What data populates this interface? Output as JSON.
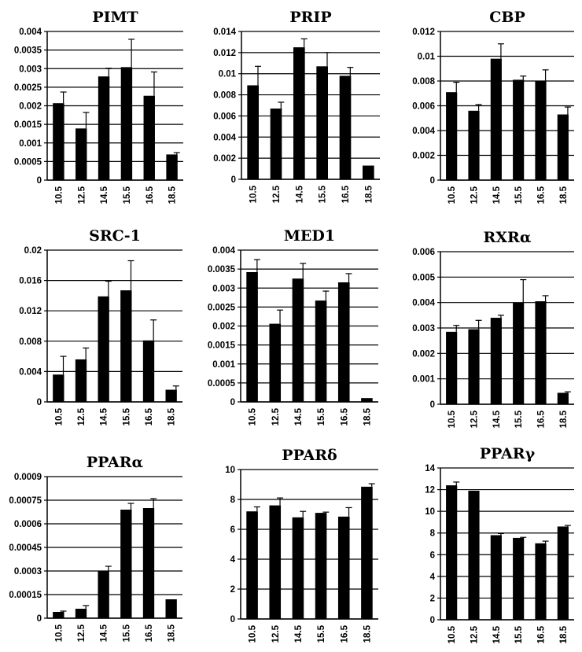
{
  "chart_data": [
    {
      "type": "bar",
      "title": "PIMT",
      "categories": [
        "10.5",
        "12.5",
        "14.5",
        "15.5",
        "16.5",
        "18.5"
      ],
      "values": [
        0.00207,
        0.00139,
        0.00279,
        0.00304,
        0.00227,
        0.00069
      ],
      "errors": [
        0.0003,
        0.00043,
        0.00022,
        0.00075,
        0.00064,
        5e-05
      ],
      "yticks": [
        "0",
        "0.0005",
        "0.001",
        "0.0015",
        "0.002",
        "0.0025",
        "0.003",
        "0.0035",
        "0.004"
      ],
      "ylim": [
        0,
        0.004
      ],
      "grid": true
    },
    {
      "type": "bar",
      "title": "PRIP",
      "categories": [
        "10.5",
        "12.5",
        "14.5",
        "15.5",
        "16.5",
        "18.5"
      ],
      "values": [
        0.0089,
        0.0067,
        0.0125,
        0.0107,
        0.0098,
        0.0013
      ],
      "errors": [
        0.0018,
        0.0006,
        0.0008,
        0.0013,
        0.0008,
        0
      ],
      "yticks": [
        "0",
        "0.002",
        "0.004",
        "0.006",
        "0.008",
        "0.01",
        "0.012",
        "0.014"
      ],
      "ylim": [
        0,
        0.014
      ],
      "grid": true
    },
    {
      "type": "bar",
      "title": "CBP",
      "categories": [
        "10.5",
        "12.5",
        "14.5",
        "15.5",
        "16.5",
        "18.5"
      ],
      "values": [
        0.0071,
        0.0056,
        0.0098,
        0.0081,
        0.008,
        0.0053
      ],
      "errors": [
        0.0008,
        0.0005,
        0.0012,
        0.0003,
        0.0009,
        0.0006
      ],
      "yticks": [
        "0",
        "0.002",
        "0.004",
        "0.006",
        "0.008",
        "0.01",
        "0.012"
      ],
      "ylim": [
        0,
        0.012
      ],
      "grid": true
    },
    {
      "type": "bar",
      "title": "SRC-1",
      "categories": [
        "10.5",
        "12.5",
        "14.5",
        "15.5",
        "16.5",
        "18.5"
      ],
      "values": [
        0.0036,
        0.0056,
        0.0139,
        0.0147,
        0.0081,
        0.0016
      ],
      "errors": [
        0.0024,
        0.0015,
        0.002,
        0.0039,
        0.0027,
        0.0005
      ],
      "yticks": [
        "0",
        "0.004",
        "0.008",
        "0.012",
        "0.016",
        "0.02"
      ],
      "ylim": [
        0,
        0.02
      ],
      "grid": true
    },
    {
      "type": "bar",
      "title": "MED1",
      "categories": [
        "10.5",
        "12.5",
        "14.5",
        "15.5",
        "16.5",
        "18.5"
      ],
      "values": [
        0.00342,
        0.00206,
        0.00325,
        0.00267,
        0.00315,
        0.0001
      ],
      "errors": [
        0.00033,
        0.00036,
        0.0004,
        0.00025,
        0.00023,
        0
      ],
      "yticks": [
        "0",
        "0.0005",
        "0.001",
        "0.0015",
        "0.002",
        "0.0025",
        "0.003",
        "0.0035",
        "0.004"
      ],
      "ylim": [
        0,
        0.004
      ],
      "grid": true
    },
    {
      "type": "bar",
      "title": "RXRα",
      "categories": [
        "10.5",
        "12.5",
        "14.5",
        "15.5",
        "16.5",
        "18.5"
      ],
      "values": [
        0.00285,
        0.00295,
        0.0034,
        0.004,
        0.00405,
        0.00045
      ],
      "errors": [
        0.00025,
        0.00035,
        0.0001,
        0.0009,
        0.00022,
        4e-05
      ],
      "yticks": [
        "0",
        "0.001",
        "0.002",
        "0.003",
        "0.004",
        "0.005",
        "0.006"
      ],
      "ylim": [
        0,
        0.006
      ],
      "grid": true
    },
    {
      "type": "bar",
      "title": "PPARα",
      "categories": [
        "10.5",
        "12.5",
        "14.5",
        "15.5",
        "16.5",
        "18.5"
      ],
      "values": [
        4e-05,
        6e-05,
        0.0003,
        0.00069,
        0.0007,
        0.00012
      ],
      "errors": [
        5e-06,
        2e-05,
        3e-05,
        4e-05,
        6e-05,
        0
      ],
      "yticks": [
        "0",
        "0.00015",
        "0.0003",
        "0.00045",
        "0.0006",
        "0.00075",
        "0.0009"
      ],
      "ylim": [
        0,
        0.0009
      ],
      "grid": true
    },
    {
      "type": "bar",
      "title": "PPARδ",
      "categories": [
        "10.5",
        "12.5",
        "14.5",
        "15.5",
        "16.5",
        "18.5"
      ],
      "values": [
        7.2,
        7.6,
        6.8,
        7.1,
        6.85,
        8.85
      ],
      "errors": [
        0.3,
        0.5,
        0.4,
        0.05,
        0.6,
        0.2
      ],
      "yticks": [
        "0",
        "2",
        "4",
        "6",
        "8",
        "10"
      ],
      "ylim": [
        0,
        10
      ],
      "grid": true
    },
    {
      "type": "bar",
      "title": "PPARγ",
      "categories": [
        "10.5",
        "12.5",
        "14.5",
        "15.5",
        "16.5",
        "18.5"
      ],
      "values": [
        12.4,
        11.9,
        7.8,
        7.55,
        7.05,
        8.6
      ],
      "errors": [
        0.3,
        0,
        0.15,
        0.05,
        0.2,
        0.1
      ],
      "yticks": [
        "0",
        "2",
        "4",
        "6",
        "8",
        "10",
        "12",
        "14"
      ],
      "ylim": [
        0,
        14
      ],
      "grid": true
    }
  ]
}
